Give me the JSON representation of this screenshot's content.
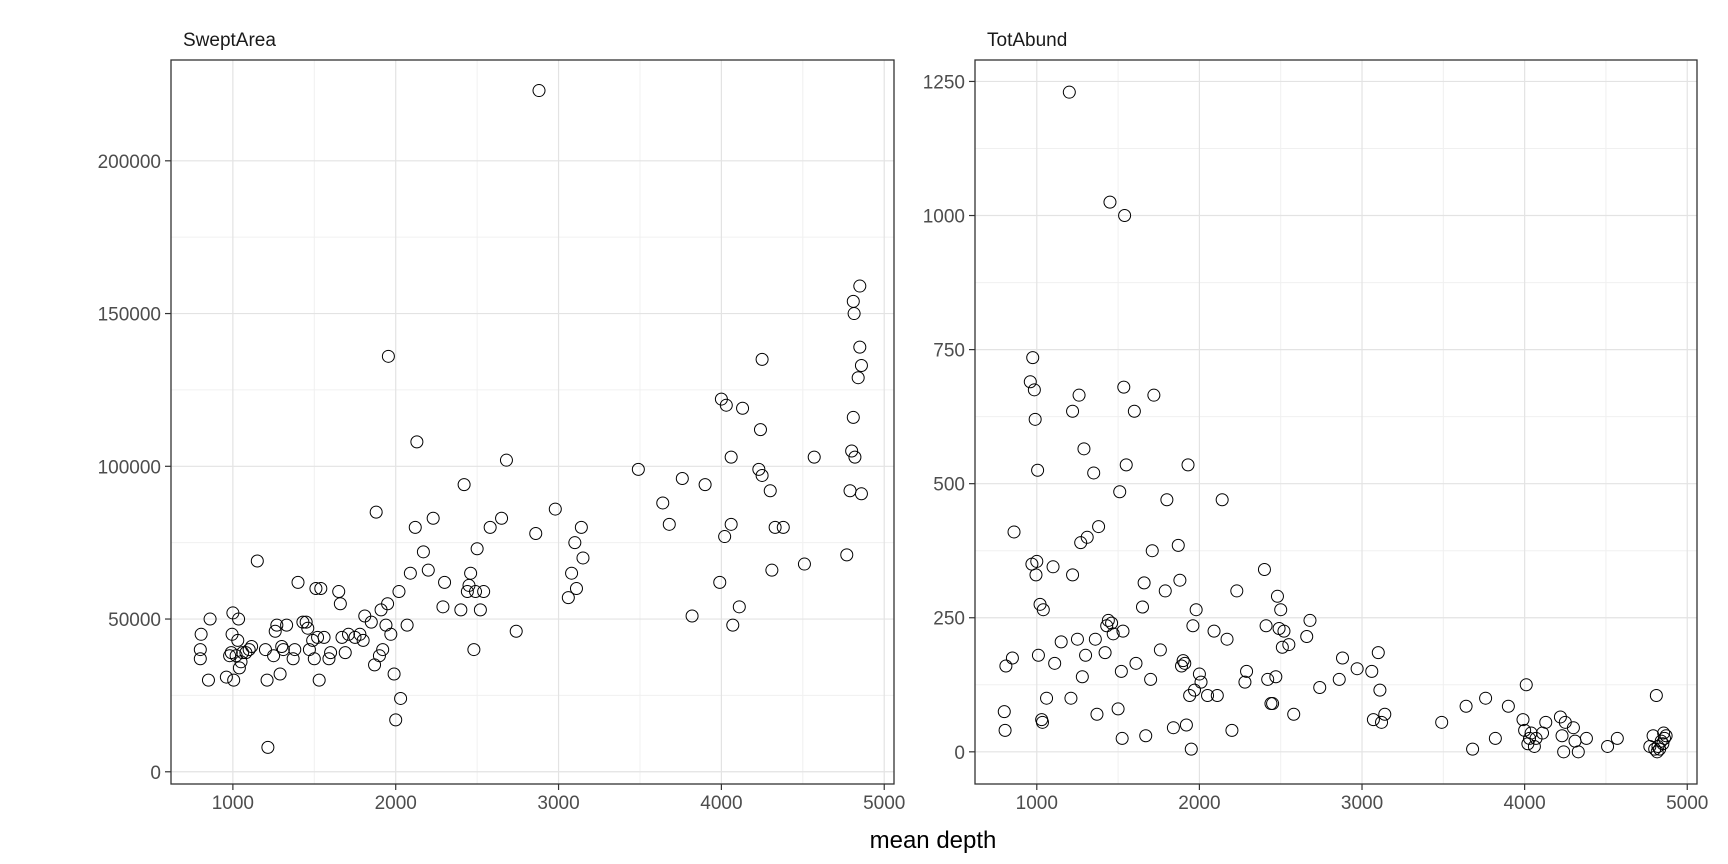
{
  "figure": {
    "xlabel": "mean depth"
  },
  "chart_data": [
    {
      "type": "scatter",
      "title": "SweptArea",
      "xlabel": "mean depth",
      "ylabel": "",
      "xlim": [
        620,
        5060
      ],
      "ylim": [
        -4000,
        233000
      ],
      "xticks": [
        1000,
        2000,
        3000,
        4000,
        5000
      ],
      "yticks": [
        0,
        50000,
        100000,
        150000,
        200000
      ],
      "grid": true,
      "marker": "open-circle",
      "points": [
        [
          800,
          37000
        ],
        [
          800,
          40000
        ],
        [
          805,
          45000
        ],
        [
          850,
          30000
        ],
        [
          860,
          50000
        ],
        [
          960,
          31000
        ],
        [
          980,
          38000
        ],
        [
          990,
          39000
        ],
        [
          995,
          45000
        ],
        [
          1000,
          52000
        ],
        [
          1005,
          30000
        ],
        [
          1020,
          38000
        ],
        [
          1030,
          43000
        ],
        [
          1035,
          50000
        ],
        [
          1040,
          34000
        ],
        [
          1050,
          36000
        ],
        [
          1060,
          39000
        ],
        [
          1080,
          39000
        ],
        [
          1100,
          40000
        ],
        [
          1115,
          41000
        ],
        [
          1150,
          69000
        ],
        [
          1200,
          40000
        ],
        [
          1210,
          30000
        ],
        [
          1215,
          8000
        ],
        [
          1250,
          38000
        ],
        [
          1260,
          46000
        ],
        [
          1270,
          48000
        ],
        [
          1290,
          32000
        ],
        [
          1300,
          41000
        ],
        [
          1310,
          40000
        ],
        [
          1330,
          48000
        ],
        [
          1370,
          37000
        ],
        [
          1380,
          40000
        ],
        [
          1400,
          62000
        ],
        [
          1430,
          49000
        ],
        [
          1450,
          49000
        ],
        [
          1460,
          47000
        ],
        [
          1470,
          40000
        ],
        [
          1490,
          43000
        ],
        [
          1500,
          37000
        ],
        [
          1510,
          60000
        ],
        [
          1520,
          44000
        ],
        [
          1530,
          30000
        ],
        [
          1540,
          60000
        ],
        [
          1560,
          44000
        ],
        [
          1590,
          37000
        ],
        [
          1600,
          39000
        ],
        [
          1650,
          59000
        ],
        [
          1660,
          55000
        ],
        [
          1670,
          44000
        ],
        [
          1690,
          39000
        ],
        [
          1710,
          45000
        ],
        [
          1750,
          44000
        ],
        [
          1780,
          45000
        ],
        [
          1800,
          43000
        ],
        [
          1810,
          51000
        ],
        [
          1850,
          49000
        ],
        [
          1870,
          35000
        ],
        [
          1880,
          85000
        ],
        [
          1900,
          38000
        ],
        [
          1910,
          53000
        ],
        [
          1920,
          40000
        ],
        [
          1940,
          48000
        ],
        [
          1950,
          55000
        ],
        [
          1955,
          136000
        ],
        [
          1970,
          45000
        ],
        [
          1990,
          32000
        ],
        [
          2000,
          17000
        ],
        [
          2020,
          59000
        ],
        [
          2030,
          24000
        ],
        [
          2070,
          48000
        ],
        [
          2090,
          65000
        ],
        [
          2120,
          80000
        ],
        [
          2130,
          108000
        ],
        [
          2170,
          72000
        ],
        [
          2200,
          66000
        ],
        [
          2230,
          83000
        ],
        [
          2290,
          54000
        ],
        [
          2300,
          62000
        ],
        [
          2400,
          53000
        ],
        [
          2420,
          94000
        ],
        [
          2440,
          59000
        ],
        [
          2450,
          61000
        ],
        [
          2460,
          65000
        ],
        [
          2480,
          40000
        ],
        [
          2490,
          59000
        ],
        [
          2500,
          73000
        ],
        [
          2520,
          53000
        ],
        [
          2540,
          59000
        ],
        [
          2580,
          80000
        ],
        [
          2650,
          83000
        ],
        [
          2680,
          102000
        ],
        [
          2740,
          46000
        ],
        [
          2860,
          78000
        ],
        [
          2880,
          223000
        ],
        [
          2980,
          86000
        ],
        [
          3060,
          57000
        ],
        [
          3080,
          65000
        ],
        [
          3100,
          75000
        ],
        [
          3110,
          60000
        ],
        [
          3140,
          80000
        ],
        [
          3150,
          70000
        ],
        [
          3490,
          99000
        ],
        [
          3640,
          88000
        ],
        [
          3680,
          81000
        ],
        [
          3760,
          96000
        ],
        [
          3820,
          51000
        ],
        [
          3900,
          94000
        ],
        [
          3990,
          62000
        ],
        [
          4000,
          122000
        ],
        [
          4030,
          120000
        ],
        [
          4020,
          77000
        ],
        [
          4060,
          103000
        ],
        [
          4060,
          81000
        ],
        [
          4070,
          48000
        ],
        [
          4110,
          54000
        ],
        [
          4130,
          119000
        ],
        [
          4230,
          99000
        ],
        [
          4240,
          112000
        ],
        [
          4250,
          97000
        ],
        [
          4250,
          135000
        ],
        [
          4300,
          92000
        ],
        [
          4310,
          66000
        ],
        [
          4330,
          80000
        ],
        [
          4380,
          80000
        ],
        [
          4510,
          68000
        ],
        [
          4570,
          103000
        ],
        [
          4770,
          71000
        ],
        [
          4790,
          92000
        ],
        [
          4800,
          105000
        ],
        [
          4810,
          116000
        ],
        [
          4810,
          154000
        ],
        [
          4815,
          150000
        ],
        [
          4820,
          103000
        ],
        [
          4840,
          129000
        ],
        [
          4850,
          139000
        ],
        [
          4850,
          159000
        ],
        [
          4860,
          91000
        ],
        [
          4860,
          133000
        ]
      ]
    },
    {
      "type": "scatter",
      "title": "TotAbund",
      "xlabel": "mean depth",
      "ylabel": "",
      "xlim": [
        620,
        5060
      ],
      "ylim": [
        -60,
        1290
      ],
      "xticks": [
        1000,
        2000,
        3000,
        4000,
        5000
      ],
      "yticks": [
        0,
        250,
        500,
        750,
        1000,
        1250
      ],
      "grid": true,
      "marker": "open-circle",
      "points": [
        [
          800,
          75
        ],
        [
          805,
          40
        ],
        [
          810,
          160
        ],
        [
          850,
          175
        ],
        [
          860,
          410
        ],
        [
          960,
          690
        ],
        [
          970,
          350
        ],
        [
          975,
          735
        ],
        [
          985,
          675
        ],
        [
          990,
          620
        ],
        [
          995,
          330
        ],
        [
          1000,
          355
        ],
        [
          1005,
          525
        ],
        [
          1010,
          180
        ],
        [
          1020,
          275
        ],
        [
          1030,
          60
        ],
        [
          1035,
          55
        ],
        [
          1040,
          265
        ],
        [
          1060,
          100
        ],
        [
          1100,
          345
        ],
        [
          1110,
          165
        ],
        [
          1150,
          205
        ],
        [
          1200,
          1230
        ],
        [
          1210,
          100
        ],
        [
          1220,
          330
        ],
        [
          1220,
          635
        ],
        [
          1250,
          210
        ],
        [
          1260,
          665
        ],
        [
          1270,
          390
        ],
        [
          1280,
          140
        ],
        [
          1290,
          565
        ],
        [
          1300,
          180
        ],
        [
          1310,
          400
        ],
        [
          1350,
          520
        ],
        [
          1360,
          210
        ],
        [
          1370,
          70
        ],
        [
          1380,
          420
        ],
        [
          1420,
          185
        ],
        [
          1430,
          235
        ],
        [
          1440,
          245
        ],
        [
          1450,
          1025
        ],
        [
          1460,
          240
        ],
        [
          1470,
          220
        ],
        [
          1500,
          80
        ],
        [
          1510,
          485
        ],
        [
          1520,
          150
        ],
        [
          1525,
          25
        ],
        [
          1530,
          225
        ],
        [
          1535,
          680
        ],
        [
          1540,
          1000
        ],
        [
          1550,
          535
        ],
        [
          1600,
          635
        ],
        [
          1610,
          165
        ],
        [
          1650,
          270
        ],
        [
          1660,
          315
        ],
        [
          1670,
          30
        ],
        [
          1700,
          135
        ],
        [
          1710,
          375
        ],
        [
          1720,
          665
        ],
        [
          1760,
          190
        ],
        [
          1790,
          300
        ],
        [
          1800,
          470
        ],
        [
          1840,
          45
        ],
        [
          1870,
          385
        ],
        [
          1880,
          320
        ],
        [
          1890,
          160
        ],
        [
          1900,
          170
        ],
        [
          1910,
          165
        ],
        [
          1920,
          50
        ],
        [
          1930,
          535
        ],
        [
          1940,
          105
        ],
        [
          1950,
          5
        ],
        [
          1960,
          235
        ],
        [
          1970,
          115
        ],
        [
          1980,
          265
        ],
        [
          2000,
          145
        ],
        [
          2010,
          130
        ],
        [
          2050,
          105
        ],
        [
          2090,
          225
        ],
        [
          2110,
          105
        ],
        [
          2140,
          470
        ],
        [
          2170,
          210
        ],
        [
          2200,
          40
        ],
        [
          2230,
          300
        ],
        [
          2280,
          130
        ],
        [
          2290,
          150
        ],
        [
          2400,
          340
        ],
        [
          2410,
          235
        ],
        [
          2420,
          135
        ],
        [
          2440,
          90
        ],
        [
          2450,
          90
        ],
        [
          2470,
          140
        ],
        [
          2480,
          290
        ],
        [
          2490,
          230
        ],
        [
          2500,
          265
        ],
        [
          2510,
          195
        ],
        [
          2520,
          225
        ],
        [
          2550,
          200
        ],
        [
          2580,
          70
        ],
        [
          2660,
          215
        ],
        [
          2680,
          245
        ],
        [
          2740,
          120
        ],
        [
          2860,
          135
        ],
        [
          2880,
          175
        ],
        [
          2970,
          155
        ],
        [
          3060,
          150
        ],
        [
          3070,
          60
        ],
        [
          3100,
          185
        ],
        [
          3110,
          115
        ],
        [
          3120,
          55
        ],
        [
          3140,
          70
        ],
        [
          3490,
          55
        ],
        [
          3640,
          85
        ],
        [
          3680,
          5
        ],
        [
          3760,
          100
        ],
        [
          3820,
          25
        ],
        [
          3900,
          85
        ],
        [
          3990,
          60
        ],
        [
          4000,
          40
        ],
        [
          4010,
          125
        ],
        [
          4020,
          15
        ],
        [
          4030,
          25
        ],
        [
          4040,
          35
        ],
        [
          4060,
          10
        ],
        [
          4070,
          25
        ],
        [
          4110,
          35
        ],
        [
          4130,
          55
        ],
        [
          4220,
          65
        ],
        [
          4230,
          30
        ],
        [
          4240,
          0
        ],
        [
          4250,
          55
        ],
        [
          4300,
          45
        ],
        [
          4310,
          20
        ],
        [
          4330,
          0
        ],
        [
          4380,
          25
        ],
        [
          4510,
          10
        ],
        [
          4570,
          25
        ],
        [
          4770,
          10
        ],
        [
          4790,
          30
        ],
        [
          4800,
          5
        ],
        [
          4810,
          105
        ],
        [
          4815,
          0
        ],
        [
          4820,
          10
        ],
        [
          4830,
          5
        ],
        [
          4840,
          20
        ],
        [
          4850,
          15
        ],
        [
          4855,
          35
        ],
        [
          4860,
          25
        ],
        [
          4870,
          30
        ]
      ]
    }
  ]
}
